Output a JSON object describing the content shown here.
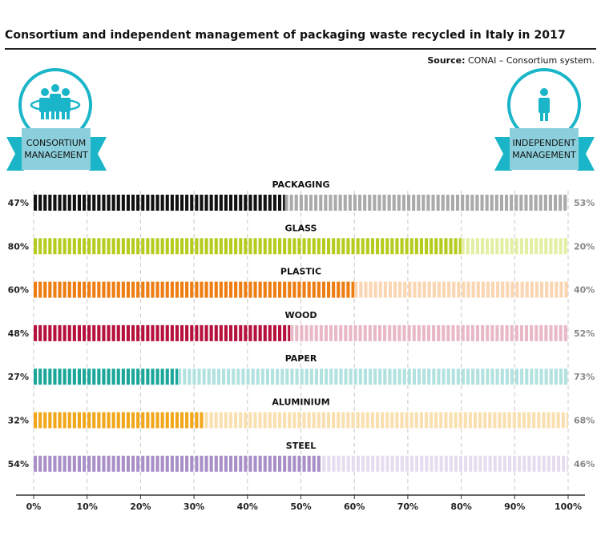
{
  "header": {
    "title": "Consortium and independent management of packaging waste recycled in Italy in 2017",
    "source_label": "Source:",
    "source_text": "CONAI – Consortium system."
  },
  "badges": {
    "left": {
      "line1": "CONSORTIUM",
      "line2": "MANAGEMENT",
      "icon": "group-of-people-icon"
    },
    "right": {
      "line1": "INDEPENDENT",
      "line2": "MANAGEMENT",
      "icon": "single-person-icon"
    }
  },
  "colors": {
    "badge_circle": "#1bb5c9",
    "badge_ribbon": "#8ccfdc",
    "badge_ribbon_tail": "#1bb5c9"
  },
  "chart_data": {
    "type": "bar",
    "stacked": true,
    "orientation": "horizontal",
    "xlim": [
      0,
      100
    ],
    "x_ticks": [
      "0%",
      "10%",
      "20%",
      "30%",
      "40%",
      "50%",
      "60%",
      "70%",
      "80%",
      "90%",
      "100%"
    ],
    "grid": true,
    "categories": [
      "PACKAGING",
      "GLASS",
      "PLASTIC",
      "WOOD",
      "PAPER",
      "ALUMINIUM",
      "STEEL"
    ],
    "series": [
      {
        "name": "CONSORTIUM MANAGEMENT",
        "values": [
          47,
          80,
          60,
          48,
          27,
          32,
          54
        ],
        "labels": [
          "47%",
          "80%",
          "60%",
          "48%",
          "27%",
          "32%",
          "54%"
        ],
        "colors": [
          "#111111",
          "#b5cc1e",
          "#ee7d12",
          "#b5113c",
          "#1aa79a",
          "#f2a71b",
          "#a98fc8"
        ]
      },
      {
        "name": "INDEPENDENT MANAGEMENT",
        "values": [
          53,
          20,
          40,
          52,
          73,
          68,
          46
        ],
        "labels": [
          "53%",
          "20%",
          "40%",
          "52%",
          "73%",
          "68%",
          "46%"
        ],
        "colors": [
          "#aaaaaa",
          "#e3efa2",
          "#fbd6b3",
          "#e9b8c6",
          "#b2e2df",
          "#fae0b0",
          "#e5ddef"
        ]
      }
    ]
  }
}
